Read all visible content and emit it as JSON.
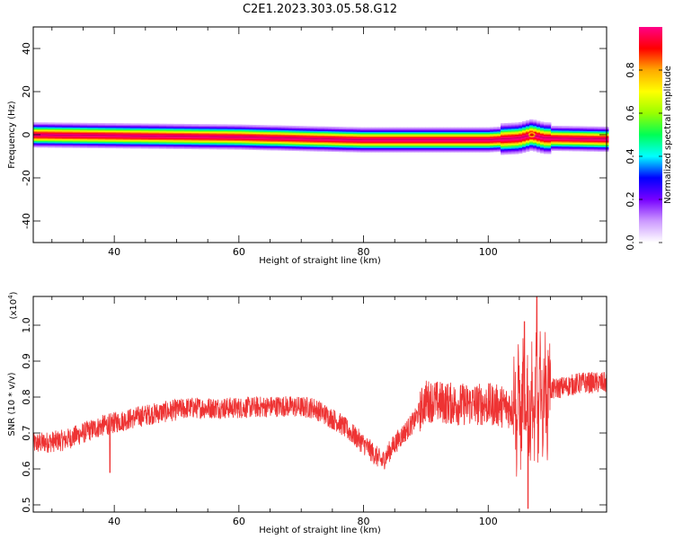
{
  "figure": {
    "title": "C2E1.2023.303.05.58.G12"
  },
  "chart_data": [
    {
      "type": "heatmap",
      "xlabel": "Height of straight line (km)",
      "ylabel": "Frequency (Hz)",
      "xlim": [
        27,
        119
      ],
      "ylim": [
        -50,
        50
      ],
      "x_ticks": [
        40,
        60,
        80,
        100
      ],
      "y_ticks": [
        -40,
        -20,
        0,
        20,
        40
      ],
      "colorbar": {
        "label": "Normalized spectral amplitude",
        "range": [
          0,
          1
        ],
        "ticks": [
          0.0,
          0.2,
          0.4,
          0.6,
          0.8
        ],
        "colors": [
          "#ffffff",
          "#cc99ff",
          "#7700ff",
          "#0000ff",
          "#00ffff",
          "#00ff55",
          "#99ff00",
          "#ffff00",
          "#ffaa00",
          "#ff0000",
          "#ff0088"
        ]
      },
      "ridge": {
        "points": [
          [
            27,
            0
          ],
          [
            60,
            -1
          ],
          [
            75,
            -2
          ],
          [
            80,
            -2.3
          ],
          [
            100,
            -2.3
          ],
          [
            105,
            -1.5
          ],
          [
            107,
            0
          ],
          [
            109,
            -1.5
          ],
          [
            119,
            -2
          ]
        ],
        "half_width_hz": 6,
        "peak_value": 1.0
      }
    },
    {
      "type": "line",
      "xlabel": "Height of straight line (km)",
      "ylabel": "SNR (10 * v/v)",
      "multiplier_label": "(x10",
      "multiplier_exp": "4",
      "multiplier_close": ")",
      "xlim": [
        27,
        119
      ],
      "ylim": [
        0.48,
        1.08
      ],
      "x_ticks": [
        40,
        60,
        80,
        100
      ],
      "y_ticks": [
        0.5,
        0.6,
        0.7,
        0.8,
        0.9,
        1.0
      ],
      "color": "#ee3333",
      "trend": [
        [
          27,
          0.67
        ],
        [
          32,
          0.68
        ],
        [
          38,
          0.72
        ],
        [
          45,
          0.75
        ],
        [
          52,
          0.77
        ],
        [
          60,
          0.77
        ],
        [
          67,
          0.775
        ],
        [
          72,
          0.77
        ],
        [
          76,
          0.73
        ],
        [
          80,
          0.67
        ],
        [
          83,
          0.62
        ],
        [
          85,
          0.67
        ],
        [
          88,
          0.73
        ],
        [
          90,
          0.79
        ],
        [
          95,
          0.78
        ],
        [
          100,
          0.78
        ],
        [
          104,
          0.77
        ],
        [
          107,
          0.77
        ],
        [
          110,
          0.82
        ],
        [
          115,
          0.84
        ],
        [
          119,
          0.84
        ]
      ],
      "features": [
        {
          "x": 39.3,
          "y": 0.59,
          "kind": "dip"
        },
        {
          "x": 106.4,
          "y": 0.49,
          "kind": "dip"
        },
        {
          "x": 105.8,
          "y": 1.01,
          "kind": "spike"
        },
        {
          "x": 107.8,
          "y": 1.08,
          "kind": "spike"
        }
      ]
    }
  ]
}
